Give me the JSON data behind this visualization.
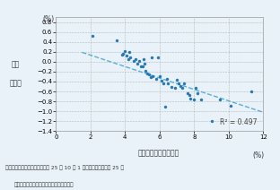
{
  "scatter_x": [
    2.1,
    3.5,
    3.8,
    3.9,
    4.0,
    4.1,
    4.2,
    4.25,
    4.3,
    4.5,
    4.6,
    4.7,
    4.8,
    4.9,
    5.0,
    5.05,
    5.1,
    5.2,
    5.3,
    5.4,
    5.5,
    5.55,
    5.6,
    5.8,
    5.9,
    6.0,
    6.1,
    6.2,
    6.3,
    6.4,
    6.5,
    6.7,
    6.9,
    7.0,
    7.1,
    7.2,
    7.3,
    7.4,
    7.6,
    7.7,
    7.8,
    8.0,
    8.1,
    8.2,
    8.4,
    9.0,
    9.5,
    10.1,
    11.3
  ],
  "scatter_y": [
    0.52,
    0.43,
    0.14,
    0.16,
    0.21,
    0.12,
    0.06,
    0.2,
    0.08,
    0.01,
    0.05,
    -0.04,
    0.01,
    -0.09,
    -0.09,
    0.05,
    -0.04,
    -0.19,
    -0.24,
    -0.26,
    -0.31,
    0.08,
    -0.3,
    -0.35,
    0.09,
    -0.29,
    -0.39,
    -0.44,
    -0.9,
    -0.35,
    -0.44,
    -0.5,
    -0.53,
    -0.37,
    -0.44,
    -0.49,
    -0.52,
    -0.43,
    -0.63,
    -0.67,
    -0.75,
    -0.77,
    -0.53,
    -0.63,
    -0.77,
    -1.2,
    -0.77,
    -0.88,
    -0.6
  ],
  "dot_color": "#2878b4",
  "trendline_color": "#5aafd8",
  "r_squared": 0.497,
  "trend_x0": 1.5,
  "trend_x1": 12.0,
  "trend_y0": 0.19,
  "trend_y1": -1.02,
  "xlim": [
    0,
    12
  ],
  "ylim": [
    -1.4,
    0.9
  ],
  "xticks": [
    0,
    2,
    4,
    6,
    8,
    10,
    12
  ],
  "yticks": [
    -1.4,
    -1.2,
    -1.0,
    -0.8,
    -0.6,
    -0.4,
    -0.2,
    0.0,
    0.2,
    0.4,
    0.6,
    0.8
  ],
  "xlabel": "その他の住宅空き家率",
  "xlabel_unit": "(%)",
  "ylabel_top": "(%)",
  "ylabel_l1": "人口",
  "ylabel_l2": "増減率",
  "note_l1": "資料）総務省「人口推計（平成 25 年 10 月 1 日現在）」、「平成 25 年",
  "note_l2": "住宅・土地統計調査」より国土交通省作成",
  "background": "#e8f2f8"
}
